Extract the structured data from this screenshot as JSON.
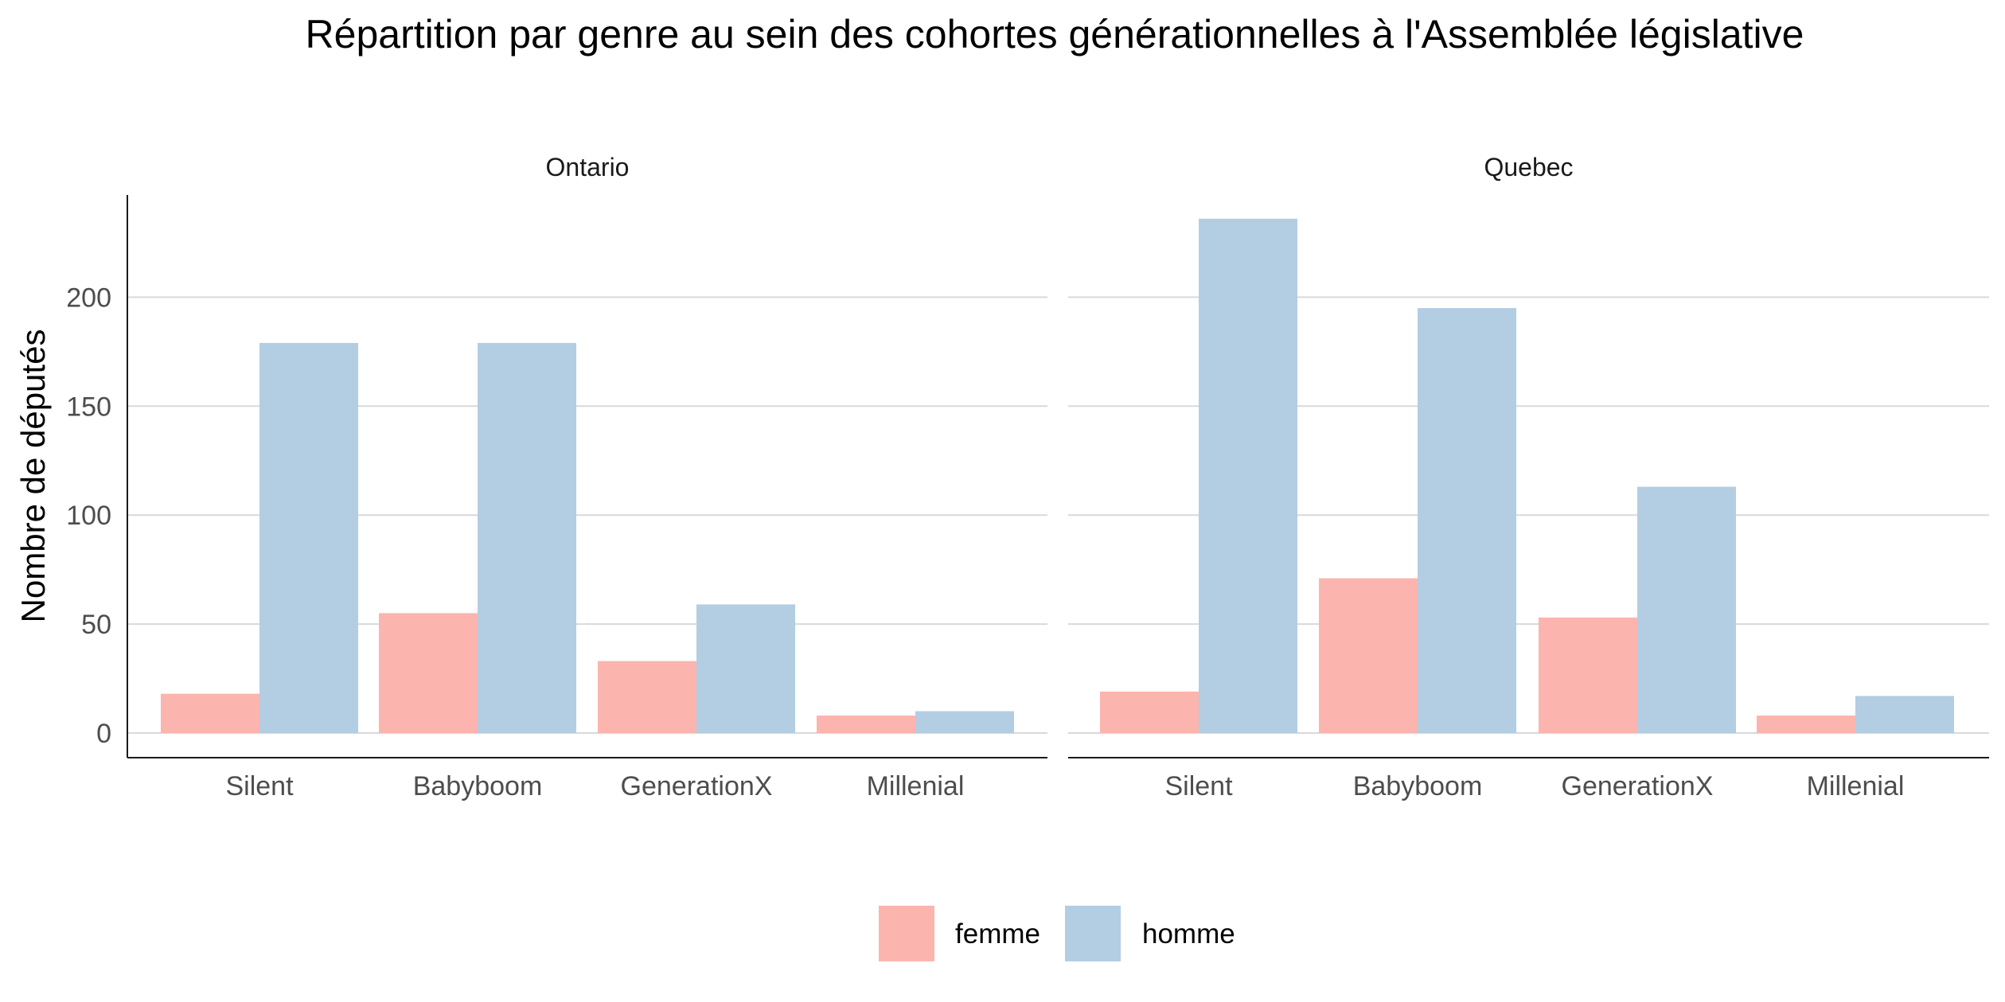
{
  "chart_data": {
    "type": "bar",
    "title": "Répartition par genre au sein des cohortes générationnelles à l'Assemblée législative",
    "ylabel": "Nombre de députés",
    "xlabel": "",
    "ylim": [
      0,
      250
    ],
    "yticks": [
      0,
      50,
      100,
      150,
      200
    ],
    "grid": true,
    "legend_position": "bottom",
    "categories": [
      "Silent",
      "Babyboom",
      "GenerationX",
      "Millenial"
    ],
    "series_names": [
      "femme",
      "homme"
    ],
    "colors": {
      "femme": "#FBB4AE",
      "homme": "#B3CDE3"
    },
    "panels": [
      {
        "label": "Ontario",
        "series": [
          {
            "name": "femme",
            "values": [
              18,
              55,
              33,
              8
            ]
          },
          {
            "name": "homme",
            "values": [
              179,
              179,
              59,
              10
            ]
          }
        ]
      },
      {
        "label": "Quebec",
        "series": [
          {
            "name": "femme",
            "values": [
              19,
              71,
              53,
              8
            ]
          },
          {
            "name": "homme",
            "values": [
              236,
              195,
              113,
              17
            ]
          }
        ]
      }
    ]
  }
}
